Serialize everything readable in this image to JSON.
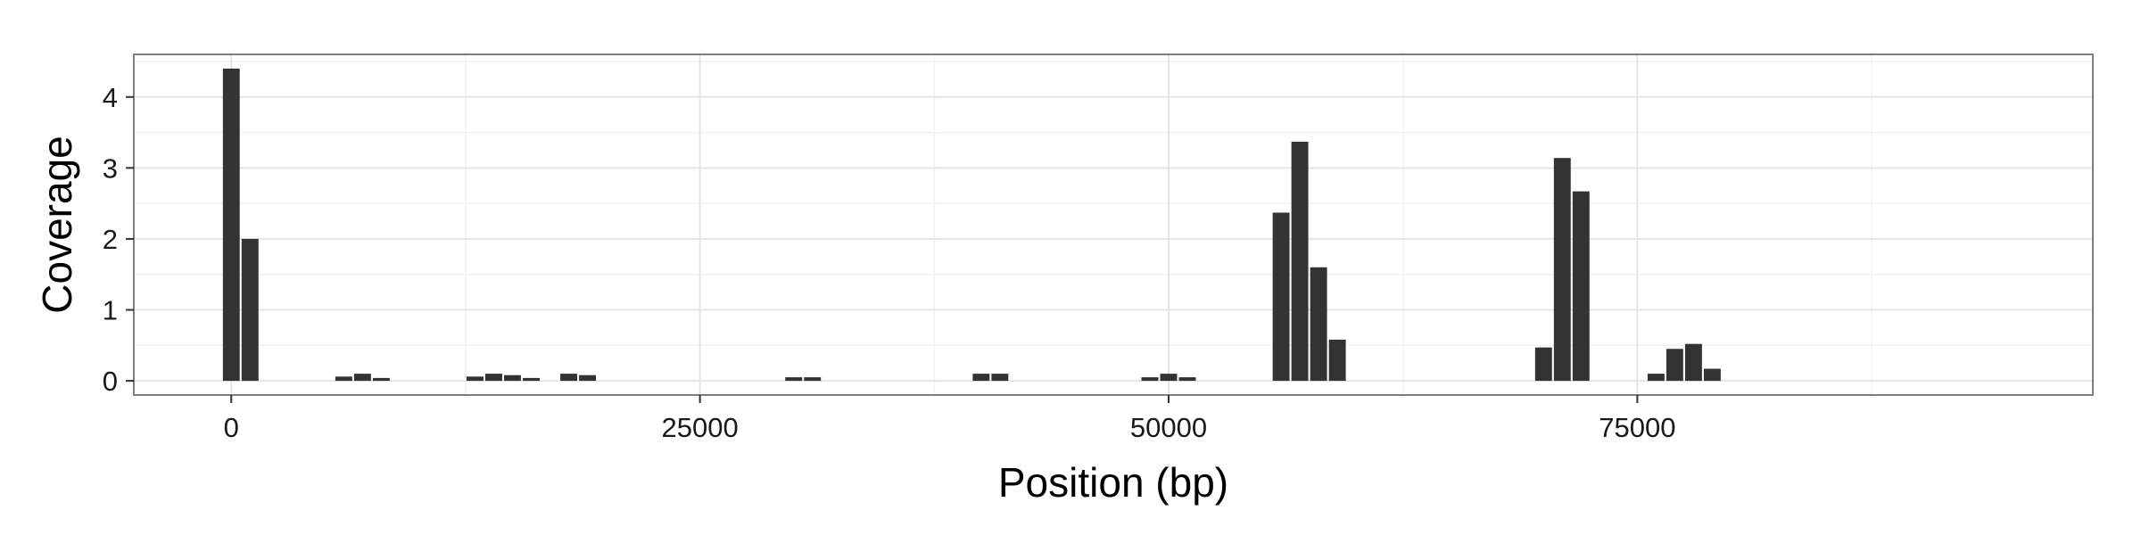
{
  "chart_data": {
    "type": "bar",
    "xlabel": "Position (bp)",
    "ylabel": "Coverage",
    "xlim": [
      -5200,
      99300
    ],
    "ylim": [
      -0.2,
      4.6
    ],
    "grid": true,
    "x_ticks": [
      0,
      25000,
      50000,
      75000
    ],
    "x_tick_labels": [
      "0",
      "25000",
      "50000",
      "75000"
    ],
    "y_ticks": [
      0,
      1,
      2,
      3,
      4
    ],
    "y_tick_labels": [
      "0",
      "1",
      "2",
      "3",
      "4"
    ],
    "bar_width": 900,
    "colors": {
      "bar": "#333333",
      "panel_border": "#7f7f7f",
      "grid_major": "#e5e5e5",
      "grid_minor": "#f2f2f2"
    },
    "x": [
      0,
      1000,
      6000,
      7000,
      8000,
      13000,
      14000,
      15000,
      16000,
      18000,
      19000,
      30000,
      31000,
      40000,
      41000,
      49000,
      50000,
      51000,
      56000,
      57000,
      58000,
      59000,
      70000,
      71000,
      72000,
      76000,
      77000,
      78000,
      79000
    ],
    "values": [
      4.4,
      2.0,
      0.06,
      0.1,
      0.04,
      0.06,
      0.1,
      0.08,
      0.04,
      0.1,
      0.08,
      0.05,
      0.05,
      0.1,
      0.1,
      0.05,
      0.1,
      0.05,
      2.37,
      3.37,
      1.6,
      0.58,
      0.47,
      3.14,
      2.67,
      0.1,
      0.45,
      0.52,
      0.17
    ]
  }
}
